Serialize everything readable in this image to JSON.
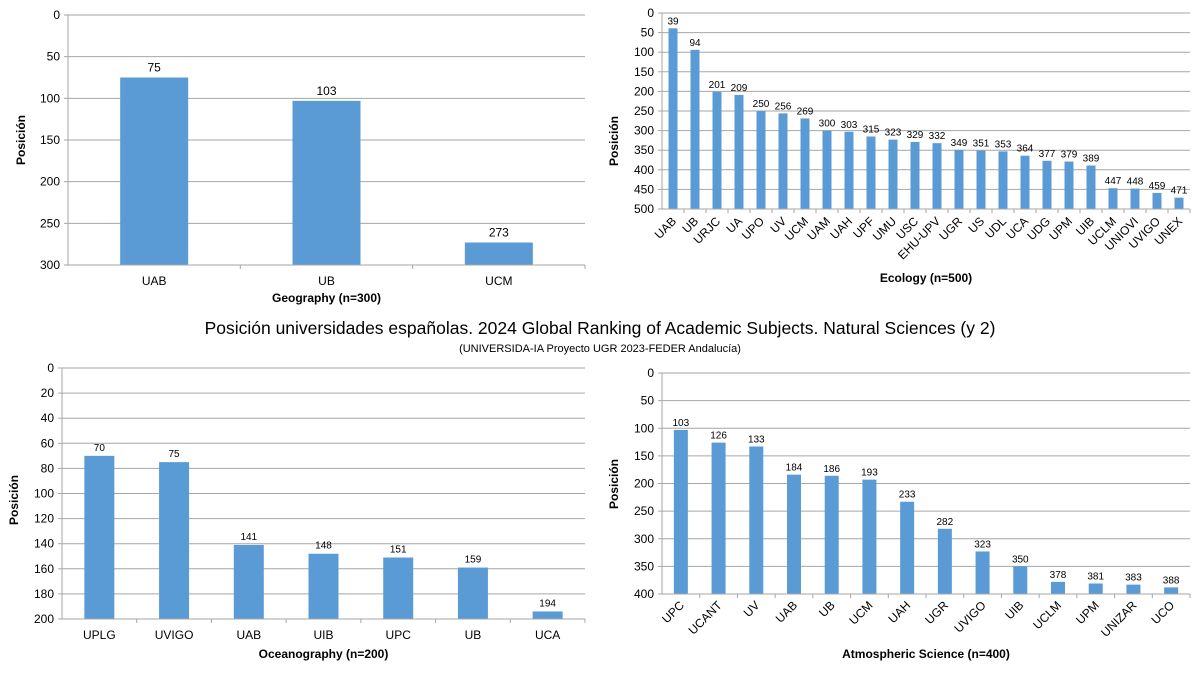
{
  "title": "Posición universidades españolas. 2024 Global Ranking of Academic Subjects. Natural Sciences (y 2)",
  "subtitle": "(UNIVERSIDA-IA  Proyecto UGR 2023-FEDER  Andalucía)",
  "colors": {
    "bar": "#5b9bd5",
    "grid": "#a6a6a6",
    "text": "#000000"
  },
  "chart_data": [
    {
      "type": "bar",
      "xlabel": "Geography (n=300)",
      "ylabel": "Posición",
      "ylim": [
        0,
        300
      ],
      "y_inverted": true,
      "ticks": [
        0,
        50,
        100,
        150,
        200,
        250,
        300
      ],
      "categories": [
        "UAB",
        "UB",
        "UCM"
      ],
      "values": [
        75,
        103,
        273
      ],
      "grid": true
    },
    {
      "type": "bar",
      "xlabel": "Ecology  (n=500)",
      "ylabel": "Posición",
      "ylim": [
        0,
        500
      ],
      "y_inverted": true,
      "ticks": [
        0,
        50,
        100,
        150,
        200,
        250,
        300,
        350,
        400,
        450,
        500
      ],
      "categories": [
        "UAB",
        "UB",
        "URJC",
        "UA",
        "UPO",
        "UV",
        "UCM",
        "UAM",
        "UAH",
        "UPF",
        "UMU",
        "USC",
        "EHU-UPV",
        "UGR",
        "US",
        "UDL",
        "UCA",
        "UDG",
        "UPM",
        "UIB",
        "UCLM",
        "UNIOVI",
        "UVIGO",
        "UNEX"
      ],
      "values": [
        39,
        94,
        201,
        209,
        250,
        256,
        269,
        300,
        303,
        315,
        323,
        329,
        332,
        349,
        351,
        353,
        364,
        377,
        379,
        389,
        447,
        448,
        459,
        471
      ],
      "grid": true
    },
    {
      "type": "bar",
      "xlabel": "Oceanography (n=200)",
      "ylabel": "Posición",
      "ylim": [
        0,
        200
      ],
      "y_inverted": true,
      "ticks": [
        0,
        20,
        40,
        60,
        80,
        100,
        120,
        140,
        160,
        180,
        200
      ],
      "categories": [
        "UPLG",
        "UVIGO",
        "UAB",
        "UIB",
        "UPC",
        "UB",
        "UCA"
      ],
      "values": [
        70,
        75,
        141,
        148,
        151,
        159,
        194
      ],
      "grid": true
    },
    {
      "type": "bar",
      "xlabel": "Atmospheric  Science (n=400)",
      "ylabel": "Posición",
      "ylim": [
        0,
        400
      ],
      "y_inverted": true,
      "ticks": [
        0,
        50,
        100,
        150,
        200,
        250,
        300,
        350,
        400
      ],
      "categories": [
        "UPC",
        "UCANT",
        "UV",
        "UAB",
        "UB",
        "UCM",
        "UAH",
        "UGR",
        "UVIGO",
        "UIB",
        "UCLM",
        "UPM",
        "UNIZAR",
        "UCO"
      ],
      "values": [
        103,
        126,
        133,
        184,
        186,
        193,
        233,
        282,
        323,
        350,
        378,
        381,
        383,
        388
      ],
      "grid": true
    }
  ]
}
